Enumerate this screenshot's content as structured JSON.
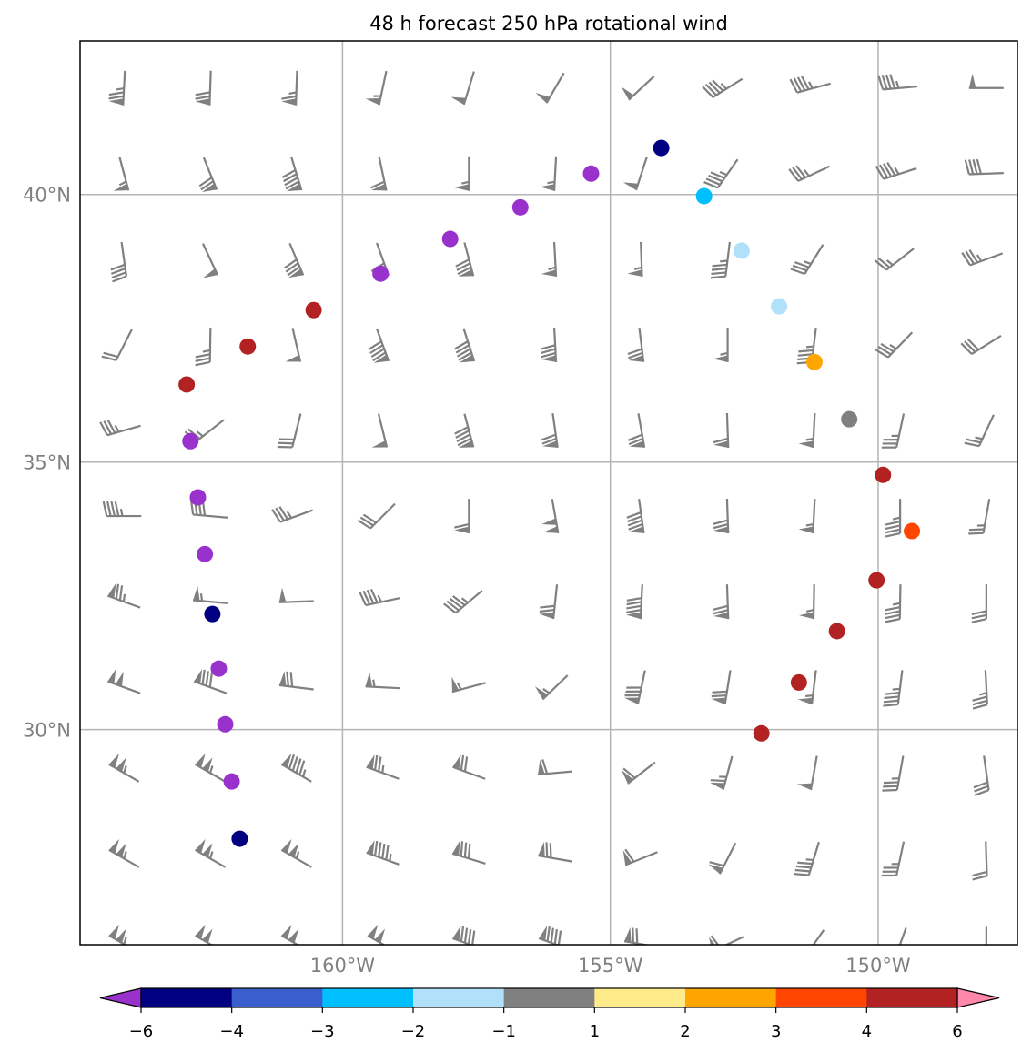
{
  "chart_data": {
    "type": "scatter",
    "title": "48 h forecast 250 hPa rotational wind",
    "xlabel": "",
    "ylabel": "",
    "xlim": [
      -164.9,
      -147.4
    ],
    "ylim": [
      25.98,
      42.87
    ],
    "x_ticks": [
      {
        "value": -160,
        "label": "160°W"
      },
      {
        "value": -155,
        "label": "155°W"
      },
      {
        "value": -150,
        "label": "150°W"
      }
    ],
    "y_ticks": [
      {
        "value": 40,
        "label": "40°N"
      },
      {
        "value": 35,
        "label": "35°N"
      },
      {
        "value": 30,
        "label": "30°N"
      }
    ],
    "grid": true,
    "barb_color": "#808080",
    "wind_barbs": {
      "units": "kt",
      "lon0": -164.08,
      "lon_step": 1.61,
      "lat0": 41.99,
      "lat_step": -1.6,
      "rows": [
        [
          [
            183,
            75
          ],
          [
            182,
            70
          ],
          [
            182,
            65
          ],
          [
            192,
            55
          ],
          [
            197,
            50
          ],
          [
            210,
            50
          ],
          [
            227,
            50
          ],
          [
            238,
            45
          ],
          [
            255,
            45
          ],
          [
            265,
            45
          ],
          [
            270,
            50
          ]
        ],
        [
          [
            165,
            55
          ],
          [
            158,
            70
          ],
          [
            163,
            90
          ],
          [
            168,
            60
          ],
          [
            180,
            55
          ],
          [
            183,
            55
          ],
          [
            198,
            50
          ],
          [
            215,
            45
          ],
          [
            245,
            35
          ],
          [
            252,
            45
          ],
          [
            268,
            40
          ]
        ],
        [
          [
            172,
            40
          ],
          [
            155,
            50
          ],
          [
            157,
            80
          ],
          [
            160,
            70
          ],
          [
            165,
            80
          ],
          [
            177,
            55
          ],
          [
            178,
            55
          ],
          [
            187,
            45
          ],
          [
            212,
            35
          ],
          [
            232,
            25
          ],
          [
            250,
            35
          ]
        ],
        [
          [
            207,
            20
          ],
          [
            181,
            35
          ],
          [
            167,
            50
          ],
          [
            160,
            90
          ],
          [
            162,
            90
          ],
          [
            177,
            80
          ],
          [
            173,
            70
          ],
          [
            180,
            55
          ],
          [
            187,
            45
          ],
          [
            224,
            35
          ],
          [
            238,
            30
          ]
        ],
        [
          [
            254,
            35
          ],
          [
            232,
            25
          ],
          [
            194,
            30
          ],
          [
            166,
            50
          ],
          [
            165,
            90
          ],
          [
            172,
            70
          ],
          [
            170,
            70
          ],
          [
            178,
            60
          ],
          [
            183,
            55
          ],
          [
            192,
            35
          ],
          [
            205,
            25
          ]
        ],
        [
          [
            270,
            45
          ],
          [
            275,
            40
          ],
          [
            250,
            35
          ],
          [
            225,
            30
          ],
          [
            180,
            60
          ],
          [
            170,
            100
          ],
          [
            172,
            90
          ],
          [
            178,
            70
          ],
          [
            183,
            55
          ],
          [
            180,
            45
          ],
          [
            190,
            25
          ]
        ],
        [
          [
            290,
            75
          ],
          [
            275,
            55
          ],
          [
            268,
            50
          ],
          [
            258,
            45
          ],
          [
            230,
            45
          ],
          [
            186,
            70
          ],
          [
            183,
            90
          ],
          [
            178,
            70
          ],
          [
            181,
            55
          ],
          [
            181,
            45
          ],
          [
            180,
            30
          ]
        ],
        [
          [
            290,
            100
          ],
          [
            290,
            80
          ],
          [
            277,
            70
          ],
          [
            273,
            55
          ],
          [
            255,
            55
          ],
          [
            226,
            55
          ],
          [
            192,
            80
          ],
          [
            189,
            70
          ],
          [
            187,
            55
          ],
          [
            187,
            45
          ],
          [
            177,
            35
          ]
        ],
        [
          [
            300,
            105
          ],
          [
            300,
            105
          ],
          [
            300,
            95
          ],
          [
            290,
            75
          ],
          [
            290,
            70
          ],
          [
            265,
            60
          ],
          [
            232,
            60
          ],
          [
            195,
            65
          ],
          [
            190,
            50
          ],
          [
            190,
            35
          ],
          [
            172,
            30
          ]
        ],
        [
          [
            300,
            105
          ],
          [
            300,
            105
          ],
          [
            300,
            105
          ],
          [
            290,
            95
          ],
          [
            287,
            80
          ],
          [
            280,
            70
          ],
          [
            248,
            60
          ],
          [
            207,
            60
          ],
          [
            197,
            45
          ],
          [
            192,
            35
          ],
          [
            178,
            20
          ]
        ],
        [
          [
            300,
            105
          ],
          [
            300,
            100
          ],
          [
            300,
            100
          ],
          [
            300,
            100
          ],
          [
            290,
            90
          ],
          [
            290,
            90
          ],
          [
            280,
            70
          ],
          [
            245,
            60
          ],
          [
            215,
            20
          ],
          [
            200,
            30
          ],
          [
            180,
            20
          ]
        ]
      ]
    },
    "points": [
      {
        "lon": -154.05,
        "lat": 40.87,
        "bin": "-6 to -4",
        "color": "#000080"
      },
      {
        "lon": -155.36,
        "lat": 40.39,
        "bin": "< -6",
        "color": "#9932cc"
      },
      {
        "lon": -153.25,
        "lat": 39.97,
        "bin": "-3 to -2",
        "color": "#00bfff"
      },
      {
        "lon": -156.68,
        "lat": 39.76,
        "bin": "< -6",
        "color": "#9932cc"
      },
      {
        "lon": -157.99,
        "lat": 39.17,
        "bin": "< -6",
        "color": "#9932cc"
      },
      {
        "lon": -152.55,
        "lat": 38.95,
        "bin": "-2 to -1",
        "color": "#b0e0fa"
      },
      {
        "lon": -159.29,
        "lat": 38.52,
        "bin": "< -6",
        "color": "#9932cc"
      },
      {
        "lon": -160.54,
        "lat": 37.84,
        "bin": "4 to 6",
        "color": "#b22222"
      },
      {
        "lon": -151.85,
        "lat": 37.91,
        "bin": "-2 to -1",
        "color": "#b0e0fa"
      },
      {
        "lon": -161.77,
        "lat": 37.16,
        "bin": "4 to 6",
        "color": "#b22222"
      },
      {
        "lon": -151.19,
        "lat": 36.87,
        "bin": "2 to 3",
        "color": "#ffa500"
      },
      {
        "lon": -162.91,
        "lat": 36.45,
        "bin": "4 to 6",
        "color": "#b22222"
      },
      {
        "lon": -150.54,
        "lat": 35.8,
        "bin": "-1 to 1",
        "color": "#808080"
      },
      {
        "lon": -162.84,
        "lat": 35.39,
        "bin": "< -6",
        "color": "#9932cc"
      },
      {
        "lon": -149.91,
        "lat": 34.76,
        "bin": "4 to 6",
        "color": "#b22222"
      },
      {
        "lon": -162.7,
        "lat": 34.34,
        "bin": "< -6",
        "color": "#9932cc"
      },
      {
        "lon": -149.37,
        "lat": 33.71,
        "bin": "3 to 4",
        "color": "#ff4500"
      },
      {
        "lon": -162.57,
        "lat": 33.28,
        "bin": "< -6",
        "color": "#9932cc"
      },
      {
        "lon": -150.03,
        "lat": 32.79,
        "bin": "4 to 6",
        "color": "#b22222"
      },
      {
        "lon": -162.43,
        "lat": 32.16,
        "bin": "-6 to -4",
        "color": "#000080"
      },
      {
        "lon": -150.77,
        "lat": 31.84,
        "bin": "4 to 6",
        "color": "#b22222"
      },
      {
        "lon": -162.31,
        "lat": 31.14,
        "bin": "< -6",
        "color": "#9932cc"
      },
      {
        "lon": -151.48,
        "lat": 30.88,
        "bin": "4 to 6",
        "color": "#b22222"
      },
      {
        "lon": -162.19,
        "lat": 30.1,
        "bin": "< -6",
        "color": "#9932cc"
      },
      {
        "lon": -152.18,
        "lat": 29.93,
        "bin": "4 to 6",
        "color": "#b22222"
      },
      {
        "lon": -162.07,
        "lat": 29.03,
        "bin": "< -6",
        "color": "#9932cc"
      },
      {
        "lon": -161.92,
        "lat": 27.96,
        "bin": "-6 to -4",
        "color": "#000080"
      }
    ],
    "colorbar": {
      "extend": "both",
      "under_color": "#9932cc",
      "over_color": "#ff88aa",
      "boundaries": [
        "−6",
        "−4",
        "−3",
        "−2",
        "−1",
        "1",
        "2",
        "3",
        "4",
        "6"
      ],
      "colors": [
        "#000080",
        "#3a5fcd",
        "#00bfff",
        "#b0e0fa",
        "#808080",
        "#ffeb8a",
        "#ffa500",
        "#ff4500",
        "#b22222"
      ]
    }
  }
}
